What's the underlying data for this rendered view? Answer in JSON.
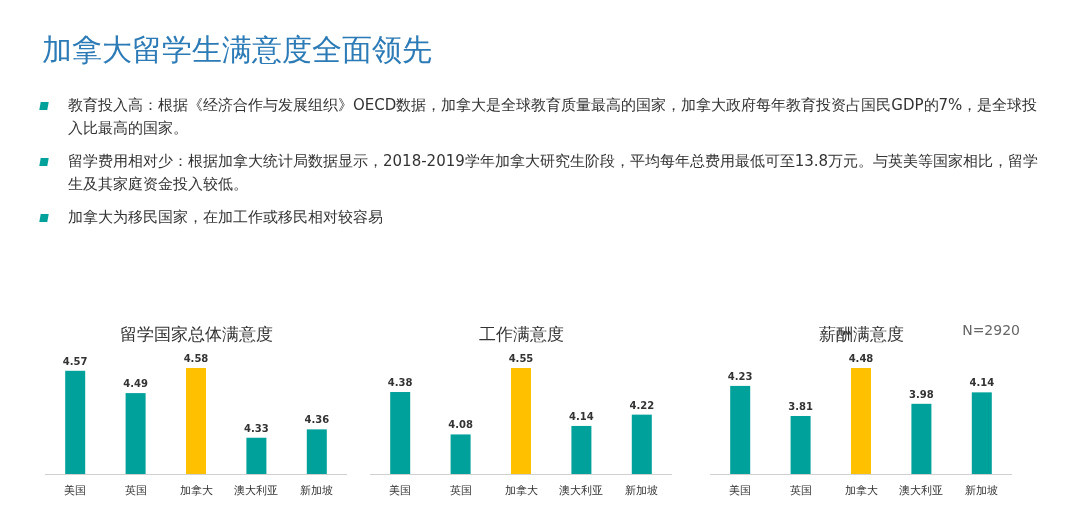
{
  "chart_data": [
    {
      "type": "other",
      "title": "加拿大留学生满意度全面领先",
      "annotations": [
        "教育投入高：根据《经济合作与发展组织》OECD数据，加拿大是全球教育质量最高的国家，加拿大政府每年教育投资占国民GDP的7%，是全球投入比最高的国家。",
        "留学费用相对少：根据加拿大统计局数据显示，2018-2019学年加拿大研究生阶段，平均每年总费用最低可至13.8万元。与英美等国家相比，留学生及其家庭资金投入较低。",
        "加拿大为移民国家，在加工作或移民相对较容易"
      ]
    },
    {
      "type": "bar",
      "title": "留学国家总体满意度",
      "categories": [
        "美国",
        "英国",
        "加拿大",
        "澳大利亚",
        "新加坡"
      ],
      "values": [
        4.57,
        4.49,
        4.58,
        4.33,
        4.36
      ],
      "colors": [
        "#00a19a",
        "#00a19a",
        "#ffc000",
        "#00a19a",
        "#00a19a"
      ],
      "data_labels": true,
      "ylim": [
        4.2,
        4.58
      ],
      "tick_labels": "x"
    },
    {
      "type": "bar",
      "title": "工作满意度",
      "categories": [
        "美国",
        "英国",
        "加拿大",
        "澳大利亚",
        "新加坡"
      ],
      "values": [
        4.38,
        4.08,
        4.55,
        4.14,
        4.22
      ],
      "colors": [
        "#00a19a",
        "#00a19a",
        "#ffc000",
        "#00a19a",
        "#00a19a"
      ],
      "data_labels": true,
      "ylim": [
        3.8,
        4.55
      ],
      "tick_labels": "x"
    },
    {
      "type": "bar",
      "title": "薪酬满意度",
      "categories": [
        "美国",
        "英国",
        "加拿大",
        "澳大利亚",
        "新加坡"
      ],
      "values": [
        4.23,
        3.81,
        4.48,
        3.98,
        4.14
      ],
      "colors": [
        "#00a19a",
        "#00a19a",
        "#ffc000",
        "#00a19a",
        "#00a19a"
      ],
      "data_labels": true,
      "ylim": [
        3.0,
        4.48
      ],
      "tick_labels": "x",
      "annotations": [
        "N=2920"
      ]
    }
  ]
}
